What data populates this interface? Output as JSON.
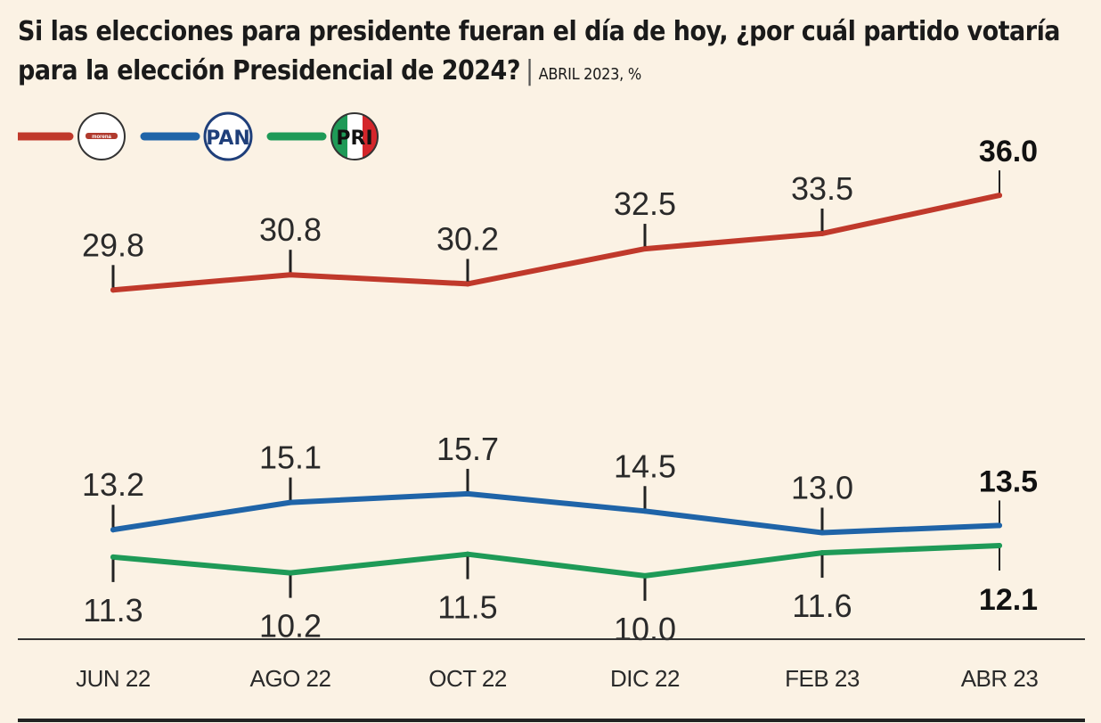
{
  "title": "Si las elecciones para presidente fueran el día de hoy, ¿por cuál partido votaría para la elección Presidencial de 2024?",
  "subtitle": "ABRIL 2023, %",
  "legend": [
    {
      "name": "morena",
      "color": "#c0392b",
      "logo": "morena-logo"
    },
    {
      "name": "PAN",
      "color": "#1f64a8",
      "logo": "pan-logo"
    },
    {
      "name": "PRI",
      "color": "#1e9a57",
      "logo": "pri-logo"
    }
  ],
  "chart_data": {
    "type": "line",
    "categories": [
      "JUN 22",
      "AGO 22",
      "OCT 22",
      "DIC 22",
      "FEB 23",
      "ABR 23"
    ],
    "series": [
      {
        "name": "morena",
        "color": "#c0392b",
        "values": [
          29.8,
          30.8,
          30.2,
          32.5,
          33.5,
          36.0
        ],
        "labels": [
          "29.8",
          "30.8",
          "30.2",
          "32.5",
          "33.5",
          "36.0"
        ]
      },
      {
        "name": "PAN",
        "color": "#1f64a8",
        "values": [
          13.2,
          15.1,
          15.7,
          14.5,
          13.0,
          13.5
        ],
        "labels": [
          "13.2",
          "15.1",
          "15.7",
          "14.5",
          "13.0",
          "13.5"
        ]
      },
      {
        "name": "PRI",
        "color": "#1e9a57",
        "values": [
          11.3,
          10.2,
          11.5,
          10.0,
          11.6,
          12.1
        ],
        "labels": [
          "11.3",
          "10.2",
          "11.5",
          "10.0",
          "11.6",
          "12.1"
        ]
      }
    ],
    "title": "Si las elecciones para presidente fueran el día de hoy, ¿por cuál partido votaría para la elección Presidencial de 2024?",
    "xlabel": "",
    "ylabel": "%",
    "grid": false
  }
}
